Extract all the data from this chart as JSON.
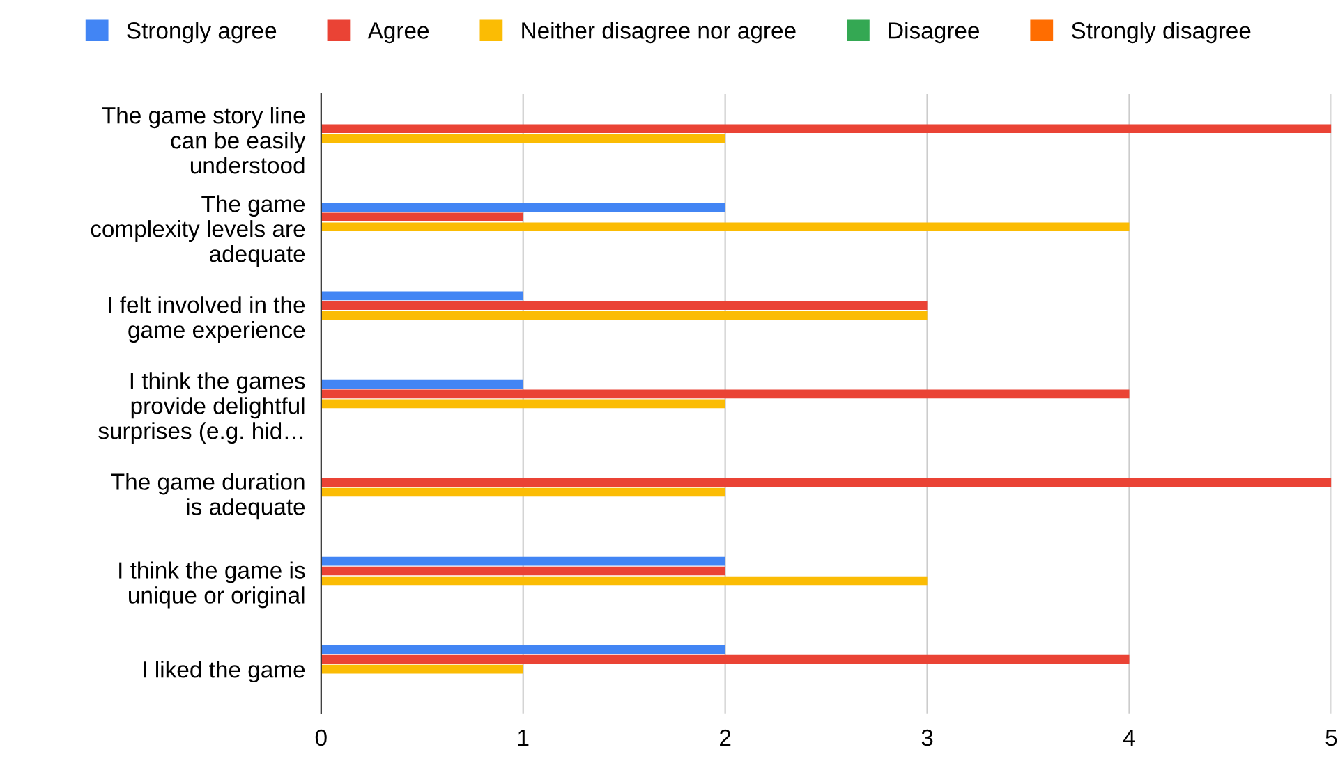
{
  "chart_data": {
    "type": "bar",
    "orientation": "horizontal",
    "categories": [
      "The game story line\ncan be easily\nunderstood",
      "The game\ncomplexity levels are\nadequate",
      "I felt involved in the\ngame experience",
      "I think the games\nprovide delightful\nsurprises (e.g. hid…",
      "The game duration\nis adequate",
      "I think the game is\nunique or original",
      "I liked the game"
    ],
    "series": [
      {
        "name": "Strongly agree",
        "color": "#4285f4",
        "values": [
          0,
          2,
          1,
          1,
          0,
          2,
          2
        ]
      },
      {
        "name": "Agree",
        "color": "#ea4335",
        "values": [
          5,
          1,
          3,
          4,
          5,
          2,
          4
        ]
      },
      {
        "name": "Neither disagree nor agree",
        "color": "#fbbc04",
        "values": [
          2,
          4,
          3,
          2,
          2,
          3,
          1
        ]
      },
      {
        "name": "Disagree",
        "color": "#34a853",
        "values": [
          0,
          0,
          0,
          0,
          0,
          0,
          0
        ]
      },
      {
        "name": "Strongly disagree",
        "color": "#ff6d01",
        "values": [
          0,
          0,
          0,
          0,
          0,
          0,
          0
        ]
      }
    ],
    "xlim": [
      0,
      5
    ],
    "xticks": [
      0,
      1,
      2,
      3,
      4,
      5
    ],
    "grid": "x",
    "legend": "top"
  }
}
